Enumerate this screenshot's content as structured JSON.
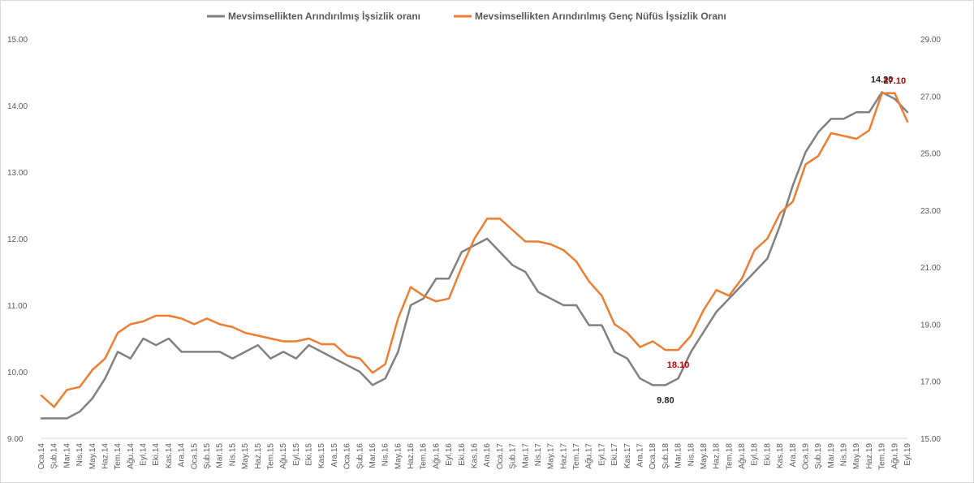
{
  "chart_data": {
    "type": "line",
    "categories": [
      "Oca.14",
      "Şub.14",
      "Mar.14",
      "Nis.14",
      "May.14",
      "Haz.14",
      "Tem.14",
      "Ağu.14",
      "Eyl.14",
      "Eki.14",
      "Kas.14",
      "Ara.14",
      "Oca.15",
      "Şub.15",
      "Mar.15",
      "Nis.15",
      "May.15",
      "Haz.15",
      "Tem.15",
      "Ağu.15",
      "Eyl.15",
      "Eki.15",
      "Kas.15",
      "Ara.15",
      "Oca.16",
      "Şub.16",
      "Mar.16",
      "Nis.16",
      "May.16",
      "Haz.16",
      "Tem.16",
      "Ağu.16",
      "Eyl.16",
      "Eki.16",
      "Kas.16",
      "Ara.16",
      "Oca.17",
      "Şub.17",
      "Mar.17",
      "Nis.17",
      "May.17",
      "Haz.17",
      "Tem.17",
      "Ağu.17",
      "Eyl.17",
      "Eki.17",
      "Kas.17",
      "Ara.17",
      "Oca.18",
      "Şub.18",
      "Mar.18",
      "Nis.18",
      "May.18",
      "Haz.18",
      "Tem.18",
      "Ağu.18",
      "Eyl.18",
      "Eki.18",
      "Kas.18",
      "Ara.18",
      "Oca.19",
      "Şub.19",
      "Mar.19",
      "Nis.19",
      "May.19",
      "Haz.19",
      "Tem.19",
      "Ağu.19",
      "Eyl.19"
    ],
    "tick_labels": [
      "Oca.14",
      "Şub.14",
      "Mar.14",
      "Nis.14",
      "May.14",
      "Haz.14",
      "Tem.14",
      "Ağu.14",
      "Eyl.14",
      "Eki.14",
      "Kas.14",
      "Ara.14",
      "Oca.15",
      "Şub.15",
      "Mar.15",
      "Nis.15",
      "May.15",
      "Haz.15",
      "Tem.15",
      "Ağu.15",
      "Eyl.15",
      "Eki.15",
      "Kas.15",
      "Ara.15",
      "Oca.16",
      "Şub.16",
      "Mar.16",
      "Nis.16",
      "May.16",
      "Haz.16",
      "Tem.16",
      "Ağu.16",
      "Eyl.16",
      "Eki.16",
      "Kas.16",
      "Ara.16",
      "Oca.17",
      "Şub.17",
      "Mar.17",
      "Nis.17",
      "May.17",
      "Haz.17",
      "Tem.17",
      "Ağu.17",
      "Eyl.17",
      "Eki.17",
      "Kas.17",
      "Ara.17",
      "Oca.18",
      "Şub.18",
      "Mar.18",
      "Nis.18",
      "May.18",
      "Haz.18",
      "Tem.18",
      "Ağu.18",
      "Eyl.18",
      "Eki.18",
      "Kas.18",
      "Ara.18",
      "Oca.19",
      "Şub.19",
      "Mar.19",
      "Nis.19",
      "May.19",
      "Haz.19",
      "Tem.19",
      "Ağu.19",
      "Eyl.19"
    ],
    "series": [
      {
        "name": "Mevsimsellikten Arındırılmış İşsizlik oranı",
        "axis": "left",
        "color": "#808080",
        "values": [
          9.3,
          9.3,
          9.3,
          9.4,
          9.6,
          9.9,
          10.3,
          10.2,
          10.5,
          10.4,
          10.5,
          10.3,
          10.3,
          10.3,
          10.3,
          10.2,
          10.3,
          10.4,
          10.2,
          10.3,
          10.2,
          10.4,
          10.3,
          10.2,
          10.1,
          10.0,
          9.8,
          9.9,
          10.3,
          11.0,
          11.1,
          11.4,
          11.4,
          11.8,
          11.9,
          12.0,
          11.8,
          11.6,
          11.5,
          11.2,
          11.1,
          11.0,
          11.0,
          10.7,
          10.7,
          10.3,
          10.2,
          9.9,
          9.8,
          9.8,
          9.9,
          10.3,
          10.6,
          10.9,
          11.1,
          11.3,
          11.5,
          11.7,
          12.2,
          12.8,
          13.3,
          13.6,
          13.8,
          13.8,
          13.9,
          13.9,
          14.2,
          14.1,
          13.9
        ]
      },
      {
        "name": "Mevsimsellikten Arındırılmış Genç Nüfüs İşsizlik Oranı",
        "axis": "right",
        "color": "#ED7D31",
        "values": [
          16.5,
          16.1,
          16.7,
          16.8,
          17.4,
          17.8,
          18.7,
          19.0,
          19.1,
          19.3,
          19.3,
          19.2,
          19.0,
          19.2,
          19.0,
          18.9,
          18.7,
          18.6,
          18.5,
          18.4,
          18.4,
          18.5,
          18.3,
          18.3,
          17.9,
          17.8,
          17.3,
          17.6,
          19.2,
          20.3,
          20.0,
          19.8,
          19.9,
          21.0,
          22.0,
          22.7,
          22.7,
          22.3,
          21.9,
          21.9,
          21.8,
          21.6,
          21.2,
          20.5,
          20.0,
          19.0,
          18.7,
          18.2,
          18.4,
          18.1,
          18.1,
          18.6,
          19.5,
          20.2,
          20.0,
          20.6,
          21.6,
          22.0,
          22.9,
          23.3,
          24.6,
          24.9,
          25.7,
          25.6,
          25.5,
          25.8,
          27.1,
          27.1,
          26.1
        ]
      }
    ],
    "y_left": {
      "min": 9,
      "max": 15,
      "ticks": [
        "9.00",
        "10.00",
        "11.00",
        "12.00",
        "13.00",
        "14.00",
        "15.00"
      ]
    },
    "y_right": {
      "min": 15,
      "max": 29,
      "ticks": [
        "15.00",
        "17.00",
        "19.00",
        "21.00",
        "23.00",
        "25.00",
        "27.00",
        "29.00"
      ]
    },
    "annotations": [
      {
        "text": "14.20",
        "series": 0,
        "index": 66,
        "color": "#262626",
        "position": "above"
      },
      {
        "text": "27.10",
        "series": 1,
        "index": 67,
        "color": "#C00000",
        "position": "above"
      },
      {
        "text": "9.80",
        "series": 0,
        "index": 49,
        "color": "#262626",
        "position": "below"
      },
      {
        "text": "18.10",
        "series": 1,
        "index": 50,
        "color": "#C00000",
        "position": "below"
      }
    ],
    "legend_position": "top",
    "grid": false
  }
}
